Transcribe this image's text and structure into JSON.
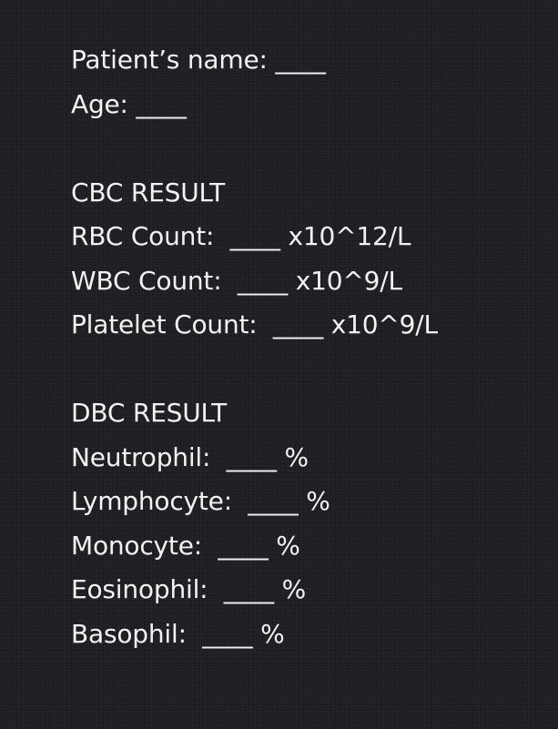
{
  "patient": {
    "name_line": "Patient’s name: ____",
    "age_line": "Age: ____"
  },
  "cbc": {
    "heading": "CBC RESULT",
    "lines": [
      "RBC Count:  ____ x10^12/L",
      "WBC Count:  ____ x10^9/L",
      "Platelet Count:  ____ x10^9/L"
    ]
  },
  "dbc": {
    "heading": "DBC RESULT",
    "lines": [
      "Neutrophil:  ____ %",
      "Lymphocyte:  ____ %",
      "Monocyte:  ____ %",
      "Eosinophil:  ____ %",
      "Basophil:  ____ %"
    ]
  }
}
